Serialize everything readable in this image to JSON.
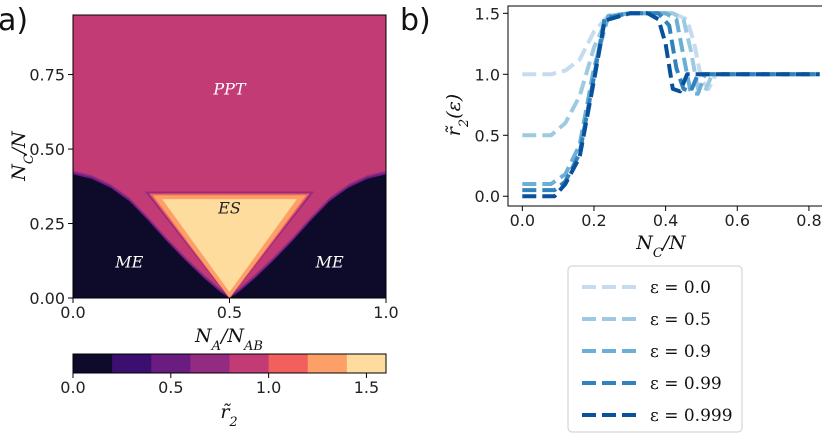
{
  "panels": {
    "a": "a)",
    "b": "b)"
  },
  "chart_data": [
    {
      "type": "heatmap",
      "xlabel": "N_A/N_AB",
      "ylabel": "N_C/N",
      "xlim": [
        0.0,
        1.0
      ],
      "ylim": [
        0.0,
        0.95
      ],
      "xticks": [
        "0.0",
        "0.5",
        "1.0"
      ],
      "yticks": [
        "0.00",
        "0.25",
        "0.50",
        "0.75"
      ],
      "xtick_values": [
        0.0,
        0.5,
        1.0
      ],
      "ytick_values": [
        0.0,
        0.25,
        0.5,
        0.75
      ],
      "regions": [
        {
          "label": "PPT",
          "x": 0.5,
          "y": 0.7,
          "color": "#ffffff"
        },
        {
          "label": "ES",
          "x": 0.5,
          "y": 0.3,
          "color": "#222222"
        },
        {
          "label": "ME",
          "x": 0.18,
          "y": 0.12,
          "color": "#ffffff"
        },
        {
          "label": "ME",
          "x": 0.82,
          "y": 0.12,
          "color": "#ffffff"
        }
      ],
      "boundary": {
        "lower_region_edge": [
          [
            0.0,
            0.415
          ],
          [
            0.06,
            0.4
          ],
          [
            0.12,
            0.37
          ],
          [
            0.18,
            0.325
          ],
          [
            0.24,
            0.26
          ],
          [
            0.3,
            0.19
          ],
          [
            0.36,
            0.125
          ],
          [
            0.42,
            0.065
          ],
          [
            0.47,
            0.02
          ],
          [
            0.5,
            0.0
          ],
          [
            0.53,
            0.02
          ],
          [
            0.58,
            0.065
          ],
          [
            0.64,
            0.125
          ],
          [
            0.7,
            0.19
          ],
          [
            0.76,
            0.26
          ],
          [
            0.82,
            0.325
          ],
          [
            0.88,
            0.37
          ],
          [
            0.94,
            0.4
          ],
          [
            1.0,
            0.415
          ]
        ],
        "es_triangle": [
          [
            0.265,
            0.345
          ],
          [
            0.735,
            0.345
          ],
          [
            0.5,
            0.0
          ]
        ]
      },
      "colorbar": {
        "label": "r̃₂",
        "range": [
          0.0,
          1.6
        ],
        "ticks": [
          "0.0",
          "0.5",
          "1.0",
          "1.5"
        ],
        "tick_values": [
          0.0,
          0.5,
          1.0,
          1.5
        ],
        "colors": [
          "#0d0a2a",
          "#3b0f6f",
          "#6a1c81",
          "#932b80",
          "#c33b75",
          "#f1605d",
          "#fca067",
          "#fddc9e"
        ]
      }
    },
    {
      "type": "line",
      "xlabel": "N_C/N",
      "ylabel": "r̃₂(ε)",
      "xlim": [
        -0.04,
        0.87
      ],
      "ylim": [
        -0.08,
        1.56
      ],
      "xticks": [
        "0.0",
        "0.2",
        "0.4",
        "0.6",
        "0.8"
      ],
      "yticks": [
        "0.0",
        "0.5",
        "1.0",
        "1.5"
      ],
      "xtick_values": [
        0.0,
        0.2,
        0.4,
        0.6,
        0.8
      ],
      "ytick_values": [
        0.0,
        0.5,
        1.0,
        1.5
      ],
      "series": [
        {
          "name": "ε = 0.0",
          "color": "#c6dbef",
          "x": [
            0.0,
            0.08,
            0.12,
            0.16,
            0.2,
            0.24,
            0.3,
            0.36,
            0.42,
            0.46,
            0.48,
            0.5,
            0.52,
            0.54,
            0.6,
            0.7,
            0.83
          ],
          "y": [
            1.0,
            1.0,
            1.03,
            1.12,
            1.35,
            1.48,
            1.5,
            1.5,
            1.5,
            1.45,
            1.25,
            0.95,
            0.88,
            1.0,
            1.0,
            1.0,
            1.0
          ]
        },
        {
          "name": "ε = 0.5",
          "color": "#9ecae1",
          "x": [
            0.0,
            0.08,
            0.12,
            0.16,
            0.2,
            0.24,
            0.3,
            0.36,
            0.42,
            0.45,
            0.47,
            0.49,
            0.51,
            0.53,
            0.6,
            0.7,
            0.83
          ],
          "y": [
            0.5,
            0.5,
            0.6,
            0.82,
            1.22,
            1.48,
            1.5,
            1.5,
            1.5,
            1.45,
            1.2,
            0.88,
            0.86,
            1.0,
            1.0,
            1.0,
            1.0
          ]
        },
        {
          "name": "ε = 0.9",
          "color": "#6baed6",
          "x": [
            0.0,
            0.08,
            0.12,
            0.16,
            0.2,
            0.24,
            0.3,
            0.36,
            0.4,
            0.43,
            0.45,
            0.47,
            0.49,
            0.51,
            0.6,
            0.7,
            0.83
          ],
          "y": [
            0.1,
            0.1,
            0.18,
            0.42,
            1.05,
            1.48,
            1.5,
            1.5,
            1.5,
            1.45,
            1.15,
            0.85,
            0.84,
            1.0,
            1.0,
            1.0,
            1.0
          ]
        },
        {
          "name": "ε = 0.99",
          "color": "#3182bd",
          "x": [
            0.0,
            0.09,
            0.12,
            0.16,
            0.2,
            0.23,
            0.3,
            0.36,
            0.38,
            0.41,
            0.43,
            0.45,
            0.47,
            0.49,
            0.6,
            0.7,
            0.83
          ],
          "y": [
            0.05,
            0.05,
            0.12,
            0.35,
            0.98,
            1.46,
            1.5,
            1.5,
            1.5,
            1.4,
            1.05,
            0.88,
            0.86,
            1.0,
            1.0,
            1.0,
            1.0
          ]
        },
        {
          "name": "ε = 0.999",
          "color": "#08519c",
          "x": [
            0.0,
            0.09,
            0.12,
            0.16,
            0.2,
            0.23,
            0.3,
            0.35,
            0.38,
            0.4,
            0.42,
            0.44,
            0.46,
            0.6,
            0.7,
            0.83
          ],
          "y": [
            0.0,
            0.0,
            0.1,
            0.32,
            0.95,
            1.44,
            1.5,
            1.5,
            1.45,
            1.25,
            0.88,
            0.86,
            1.0,
            1.0,
            1.0,
            1.0
          ]
        }
      ]
    }
  ]
}
